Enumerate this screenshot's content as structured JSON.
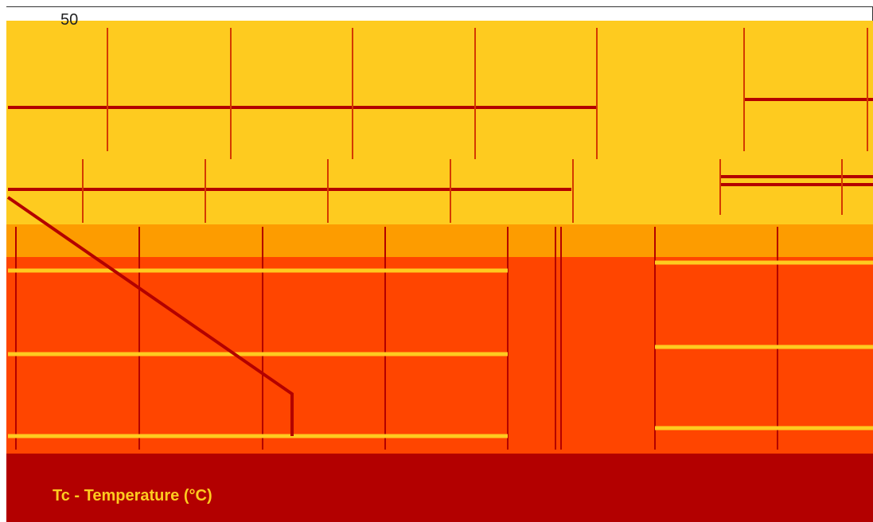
{
  "header": {
    "value_label": "50"
  },
  "footer": {
    "axis_title": "Tc - Temperature (°C)"
  }
}
